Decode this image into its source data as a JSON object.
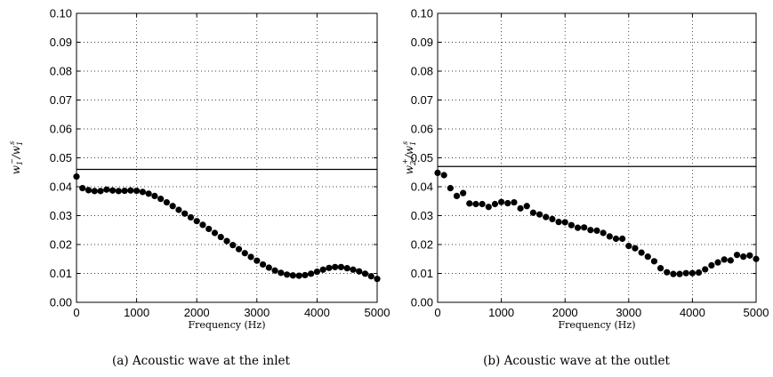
{
  "chart_data": [
    {
      "type": "scatter",
      "caption": "(a) Acoustic wave at the inlet",
      "xlabel": "Frequency (Hz)",
      "ylabel": {
        "main": "w",
        "sub1": "1",
        "sup1": "−",
        "slash": "/",
        "main2": "w",
        "sub2": "1",
        "sup2": "s"
      },
      "xlim": [
        0,
        5000
      ],
      "ylim": [
        0,
        0.1
      ],
      "xticks": [
        "0",
        "1000",
        "2000",
        "3000",
        "4000",
        "5000"
      ],
      "yticks": [
        "0.00",
        "0.01",
        "0.02",
        "0.03",
        "0.04",
        "0.05",
        "0.06",
        "0.07",
        "0.08",
        "0.09",
        "0.10"
      ],
      "grid": true,
      "reference_line": 0.046,
      "x": [
        0,
        100,
        200,
        300,
        400,
        500,
        600,
        700,
        800,
        900,
        1000,
        1100,
        1200,
        1300,
        1400,
        1500,
        1600,
        1700,
        1800,
        1900,
        2000,
        2100,
        2200,
        2300,
        2400,
        2500,
        2600,
        2700,
        2800,
        2900,
        3000,
        3100,
        3200,
        3300,
        3400,
        3500,
        3600,
        3700,
        3800,
        3900,
        4000,
        4100,
        4200,
        4300,
        4400,
        4500,
        4600,
        4700,
        4800,
        4900,
        5000
      ],
      "y": [
        0.0435,
        0.0395,
        0.0388,
        0.0385,
        0.0385,
        0.039,
        0.0387,
        0.0385,
        0.0386,
        0.0387,
        0.0386,
        0.0382,
        0.0376,
        0.0368,
        0.0358,
        0.0346,
        0.0333,
        0.032,
        0.0307,
        0.0294,
        0.0281,
        0.0268,
        0.0254,
        0.024,
        0.0226,
        0.0212,
        0.0198,
        0.0184,
        0.017,
        0.0157,
        0.0144,
        0.0131,
        0.012,
        0.011,
        0.0102,
        0.0096,
        0.0093,
        0.0092,
        0.0094,
        0.0099,
        0.0106,
        0.0113,
        0.0119,
        0.0122,
        0.0122,
        0.0118,
        0.0113,
        0.0107,
        0.0099,
        0.009,
        0.0081
      ]
    },
    {
      "type": "scatter",
      "caption": "(b) Acoustic wave at the outlet",
      "xlabel": "Frequency (Hz)",
      "ylabel": {
        "main": "w",
        "sub1": "2",
        "sup1": "+",
        "slash": "/",
        "main2": "w",
        "sub2": "1",
        "sup2": "s"
      },
      "xlim": [
        0,
        5000
      ],
      "ylim": [
        0,
        0.1
      ],
      "xticks": [
        "0",
        "1000",
        "2000",
        "3000",
        "4000",
        "5000"
      ],
      "yticks": [
        "0.00",
        "0.01",
        "0.02",
        "0.03",
        "0.04",
        "0.05",
        "0.06",
        "0.07",
        "0.08",
        "0.09",
        "0.10"
      ],
      "grid": true,
      "reference_line": 0.047,
      "x": [
        0,
        100,
        200,
        300,
        400,
        500,
        600,
        700,
        800,
        900,
        1000,
        1100,
        1200,
        1300,
        1400,
        1500,
        1600,
        1700,
        1800,
        1900,
        2000,
        2100,
        2200,
        2300,
        2400,
        2500,
        2600,
        2700,
        2800,
        2900,
        3000,
        3100,
        3200,
        3300,
        3400,
        3500,
        3600,
        3700,
        3800,
        3900,
        4000,
        4100,
        4200,
        4300,
        4400,
        4500,
        4600,
        4700,
        4800,
        4900,
        5000
      ],
      "y": [
        0.0448,
        0.044,
        0.0395,
        0.0368,
        0.0378,
        0.0342,
        0.034,
        0.034,
        0.033,
        0.034,
        0.0347,
        0.0343,
        0.0346,
        0.0325,
        0.0333,
        0.031,
        0.0304,
        0.0295,
        0.0288,
        0.0278,
        0.0277,
        0.0267,
        0.0258,
        0.0259,
        0.025,
        0.0248,
        0.024,
        0.0228,
        0.022,
        0.022,
        0.0195,
        0.0187,
        0.0172,
        0.0158,
        0.0142,
        0.0118,
        0.0104,
        0.0098,
        0.0098,
        0.0101,
        0.0101,
        0.0103,
        0.0114,
        0.0128,
        0.0138,
        0.0148,
        0.0145,
        0.0164,
        0.0158,
        0.0162,
        0.015
      ]
    }
  ]
}
